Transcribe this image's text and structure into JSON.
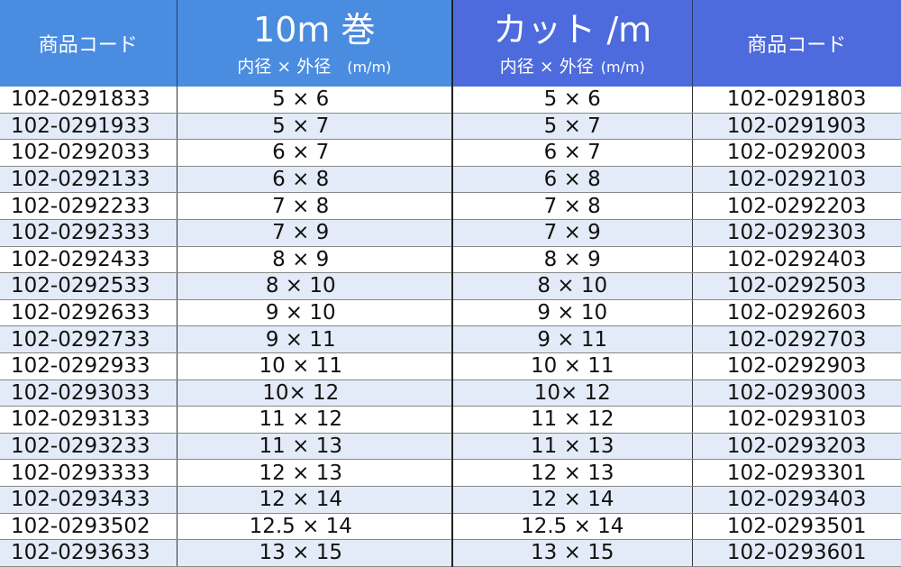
{
  "header": {
    "code_left": "商品コード",
    "roll_title": "10m 巻",
    "roll_sub": "内径 × 外径",
    "roll_unit": "(m/m)",
    "cut_title": "カット /m",
    "cut_sub": "内径 × 外径",
    "cut_unit": "(m/m)",
    "code_right": "商品コード"
  },
  "colors": {
    "header_left": "#4a8ce0",
    "header_right": "#4d6bdc",
    "row_alt": "#e3ebf8"
  },
  "rows": [
    [
      "102-0291833",
      "5 × 6",
      "5 × 6",
      "102-0291803"
    ],
    [
      "102-0291933",
      "5 × 7",
      "5 × 7",
      "102-0291903"
    ],
    [
      "102-0292033",
      "6 × 7",
      "6 × 7",
      "102-0292003"
    ],
    [
      "102-0292133",
      "6 × 8",
      "6 × 8",
      "102-0292103"
    ],
    [
      "102-0292233",
      "7 × 8",
      "7 × 8",
      "102-0292203"
    ],
    [
      "102-0292333",
      "7 × 9",
      "7 × 9",
      "102-0292303"
    ],
    [
      "102-0292433",
      "8 × 9",
      "8 × 9",
      "102-0292403"
    ],
    [
      "102-0292533",
      "8 × 10",
      "8 × 10",
      "102-0292503"
    ],
    [
      "102-0292633",
      "9 × 10",
      "9 × 10",
      "102-0292603"
    ],
    [
      "102-0292733",
      "9 × 11",
      "9 × 11",
      "102-0292703"
    ],
    [
      "102-0292933",
      "10 × 11",
      "10 × 11",
      "102-0292903"
    ],
    [
      "102-0293033",
      "10× 12",
      "10× 12",
      "102-0293003"
    ],
    [
      "102-0293133",
      "11 × 12",
      "11 × 12",
      "102-0293103"
    ],
    [
      "102-0293233",
      "11 × 13",
      "11 × 13",
      "102-0293203"
    ],
    [
      "102-0293333",
      "12 × 13",
      "12 × 13",
      "102-0293301"
    ],
    [
      "102-0293433",
      "12 × 14",
      "12 × 14",
      "102-0293403"
    ],
    [
      "102-0293502",
      "12.5 × 14",
      "12.5 × 14",
      "102-0293501"
    ],
    [
      "102-0293633",
      "13 × 15",
      "13 × 15",
      "102-0293601"
    ]
  ]
}
